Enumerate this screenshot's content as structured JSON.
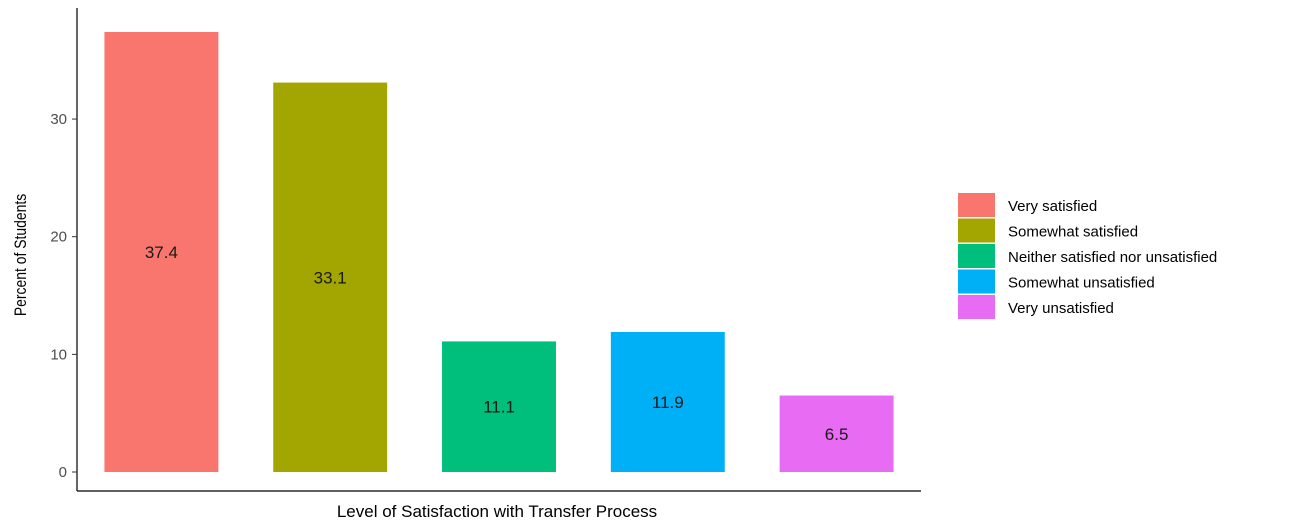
{
  "chart_data": {
    "type": "bar",
    "xlabel": "Level of Satisfaction with Transfer Process",
    "ylabel": "Percent of Students",
    "ylim": [
      0,
      37.4
    ],
    "yticks": [
      0,
      10,
      20,
      30
    ],
    "grid": false,
    "legend_position": "right",
    "categories": [
      "Very satisfied",
      "Somewhat satisfied",
      "Neither satisfied nor unsatisfied",
      "Somewhat unsatisfied",
      "Very unsatisfied"
    ],
    "values": [
      37.4,
      33.1,
      11.1,
      11.9,
      6.5
    ],
    "value_labels": [
      "37.4",
      "33.1",
      "11.1",
      "11.9",
      "6.5"
    ],
    "colors": [
      "#F8766D",
      "#A3A500",
      "#00BF7D",
      "#00B0F6",
      "#E76BF3"
    ]
  }
}
